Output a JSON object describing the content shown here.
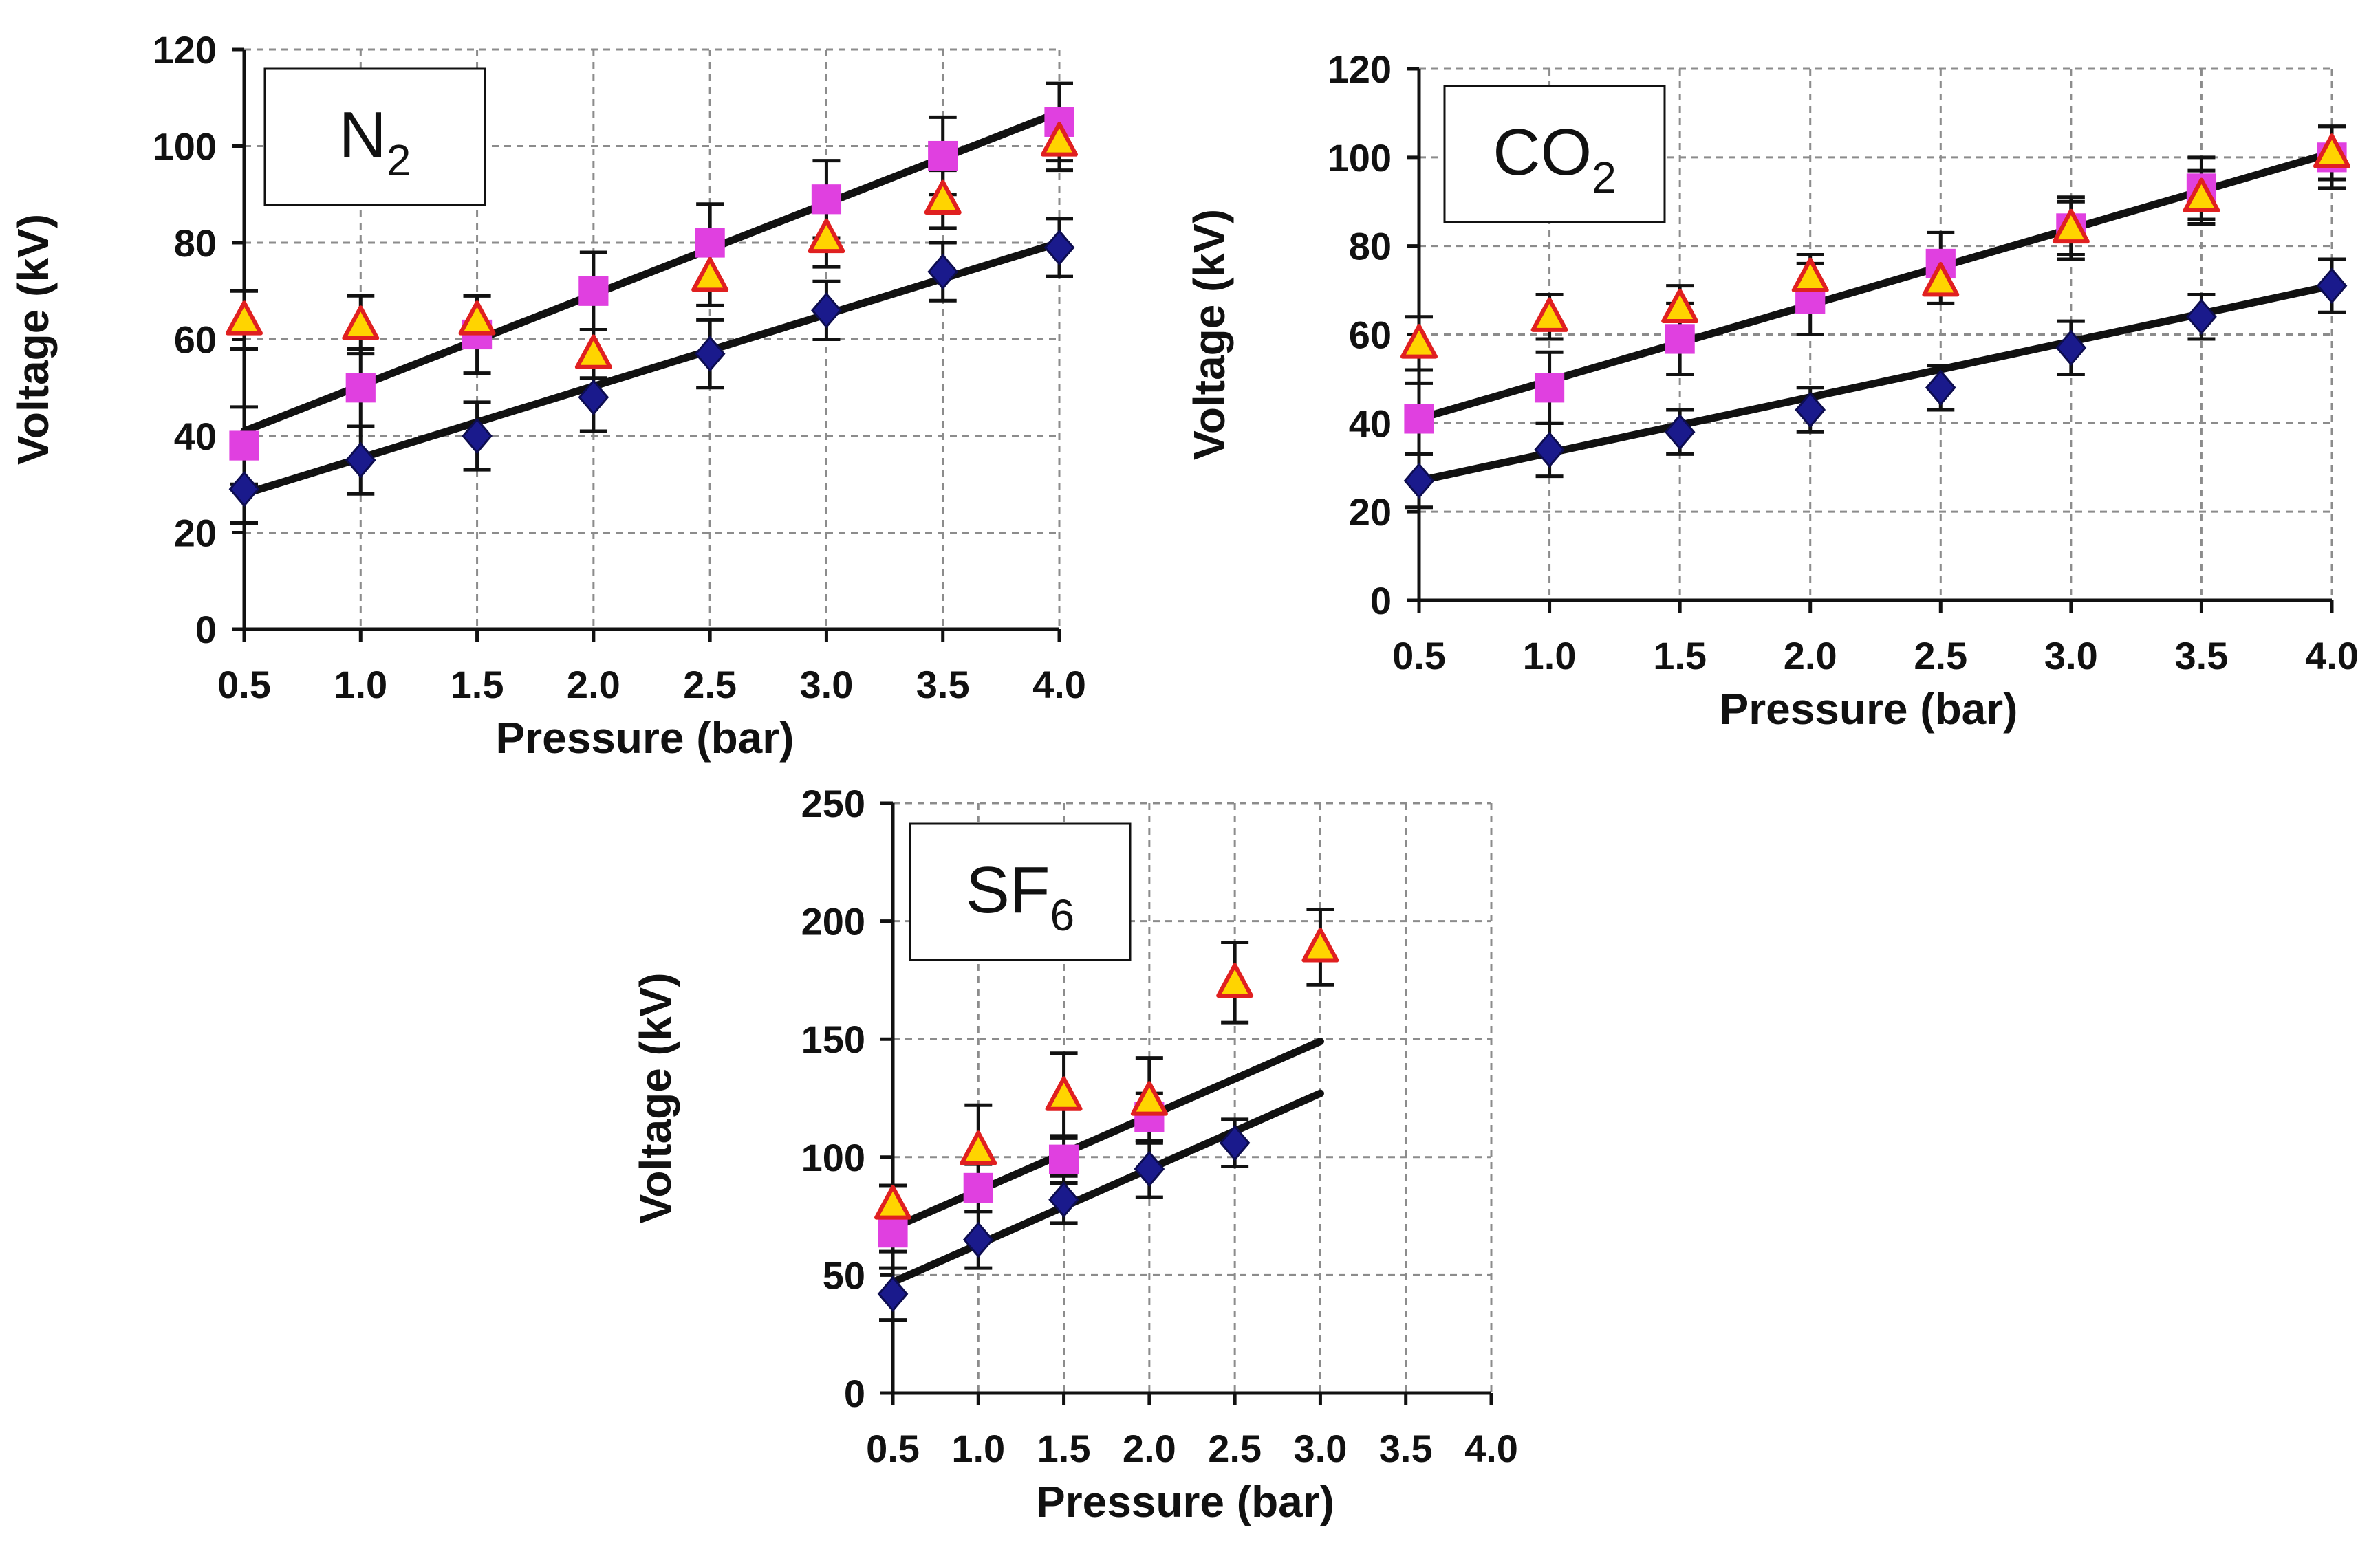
{
  "chart_data": [
    {
      "type": "scatter",
      "title": "N2",
      "label": {
        "main": "N",
        "sub": "2"
      },
      "xlabel": "Pressure (bar)",
      "ylabel": "Voltage (kV)",
      "xlim": [
        0.5,
        4.0
      ],
      "ylim": [
        0,
        120
      ],
      "xticks": [
        "0.5",
        "1.0",
        "1.5",
        "2.0",
        "2.5",
        "3.0",
        "3.5",
        "4.0"
      ],
      "yticks": [
        "0",
        "20",
        "40",
        "60",
        "80",
        "100",
        "120"
      ],
      "grid": true,
      "x": [
        0.5,
        1.0,
        1.5,
        2.0,
        2.5,
        3.0,
        3.5,
        4.0
      ],
      "series": [
        {
          "name": "diamond",
          "marker": "diamond",
          "color": "#1a1a8c",
          "values": [
            29,
            35,
            40,
            48,
            57,
            66,
            74,
            79
          ],
          "err": [
            7,
            7,
            7,
            7,
            7,
            6,
            6,
            6
          ],
          "fit": [
            [
              0.5,
              28
            ],
            [
              4.0,
              80
            ]
          ]
        },
        {
          "name": "square",
          "marker": "square",
          "color": "#e040e0",
          "values": [
            38,
            50,
            61,
            70,
            80,
            89,
            98,
            105
          ],
          "err": [
            8,
            8,
            8,
            8,
            8,
            8,
            8,
            8
          ],
          "fit": [
            [
              0.5,
              41
            ],
            [
              4.0,
              107
            ]
          ]
        },
        {
          "name": "triangle",
          "marker": "triangle",
          "color": "#ffd400",
          "stroke": "#e02020",
          "values": [
            64,
            63,
            64,
            57,
            73,
            81,
            89,
            101
          ],
          "err": [
            6,
            6,
            5,
            5,
            6,
            6,
            6,
            6
          ]
        }
      ]
    },
    {
      "type": "scatter",
      "title": "CO2",
      "label": {
        "main": "CO",
        "sub": "2"
      },
      "xlabel": "Pressure (bar)",
      "ylabel": "Voltage (kV)",
      "xlim": [
        0.5,
        4.0
      ],
      "ylim": [
        0,
        120
      ],
      "xticks": [
        "0.5",
        "1.0",
        "1.5",
        "2.0",
        "2.5",
        "3.0",
        "3.5",
        "4.0"
      ],
      "yticks": [
        "0",
        "20",
        "40",
        "60",
        "80",
        "100",
        "120"
      ],
      "grid": true,
      "x": [
        0.5,
        1.0,
        1.5,
        2.0,
        2.5,
        3.0,
        3.5,
        4.0
      ],
      "series": [
        {
          "name": "diamond",
          "marker": "diamond",
          "color": "#1a1a8c",
          "values": [
            27,
            34,
            38,
            43,
            48,
            57,
            64,
            71
          ],
          "err": [
            6,
            6,
            5,
            5,
            5,
            6,
            5,
            6
          ],
          "fit": [
            [
              0.5,
              27
            ],
            [
              4.0,
              71
            ]
          ]
        },
        {
          "name": "square",
          "marker": "square",
          "color": "#e040e0",
          "values": [
            41,
            48,
            59,
            68,
            76,
            84,
            93,
            100
          ],
          "err": [
            8,
            8,
            8,
            8,
            7,
            7,
            7,
            7
          ],
          "fit": [
            [
              0.5,
              41
            ],
            [
              4.0,
              101
            ]
          ]
        },
        {
          "name": "triangle",
          "marker": "triangle",
          "color": "#ffd400",
          "stroke": "#e02020",
          "values": [
            58,
            64,
            66,
            73,
            72,
            84,
            91,
            101
          ],
          "err": [
            6,
            5,
            5,
            5,
            5,
            6,
            6,
            6
          ]
        }
      ]
    },
    {
      "type": "scatter",
      "title": "SF6",
      "label": {
        "main": "SF",
        "sub": "6"
      },
      "xlabel": "Pressure (bar)",
      "ylabel": "Voltage (kV)",
      "xlim": [
        0.5,
        4.0
      ],
      "ylim": [
        0,
        250
      ],
      "xticks": [
        "0.5",
        "1.0",
        "1.5",
        "2.0",
        "2.5",
        "3.0",
        "3.5",
        "4.0"
      ],
      "yticks": [
        "0",
        "50",
        "100",
        "150",
        "200",
        "250"
      ],
      "grid": true,
      "x": [
        0.5,
        1.0,
        1.5,
        2.0,
        2.5,
        3.0
      ],
      "series": [
        {
          "name": "diamond",
          "marker": "diamond",
          "color": "#1a1a8c",
          "values": [
            42,
            65,
            82,
            95,
            106
          ],
          "err": [
            11,
            12,
            10,
            12,
            10
          ],
          "fit": [
            [
              0.5,
              47
            ],
            [
              3.0,
              127
            ]
          ]
        },
        {
          "name": "square",
          "marker": "square",
          "color": "#e040e0",
          "values": [
            68,
            87,
            99,
            117
          ],
          "err": [
            8,
            10,
            10,
            10
          ],
          "fit": [
            [
              0.5,
              70
            ],
            [
              3.0,
              149
            ]
          ]
        },
        {
          "name": "triangle",
          "marker": "triangle",
          "color": "#ffd400",
          "stroke": "#e02020",
          "values": [
            80,
            103,
            126,
            124,
            174,
            189
          ],
          "err": [
            8,
            19,
            18,
            18,
            17,
            16
          ]
        }
      ]
    }
  ]
}
